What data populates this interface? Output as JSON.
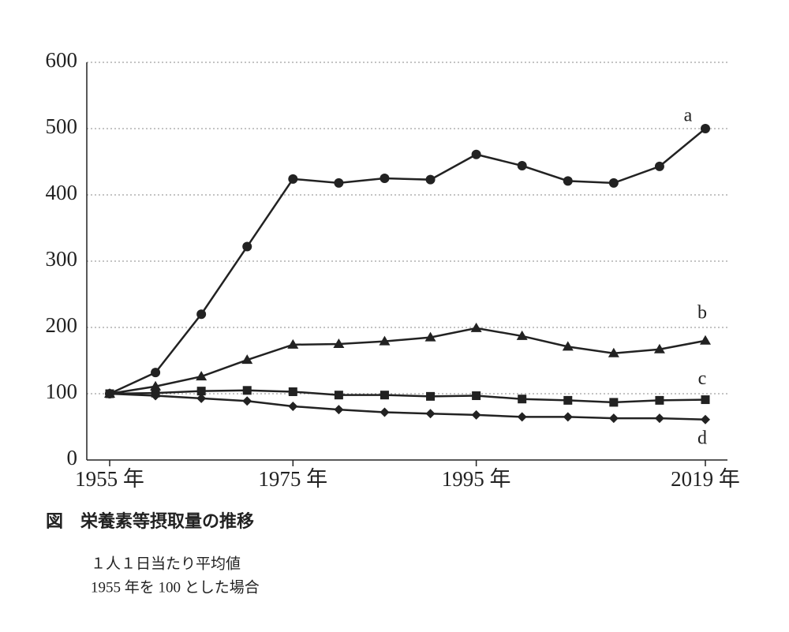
{
  "chart_data": {
    "type": "line",
    "title": "図　栄養素等摂取量の推移",
    "notes": [
      "１人１日当たり平均値",
      "1955 年を 100 とした場合"
    ],
    "categories": [
      "1955 年",
      null,
      null,
      null,
      "1975 年",
      null,
      null,
      null,
      "1995 年",
      null,
      null,
      null,
      null,
      "2019 年"
    ],
    "series": [
      {
        "name": "a",
        "marker": "circle",
        "color": "#222",
        "values": [
          100,
          132,
          220,
          322,
          424,
          418,
          425,
          423,
          461,
          444,
          421,
          418,
          443,
          500
        ]
      },
      {
        "name": "b",
        "marker": "triangle",
        "color": "#222",
        "values": [
          100,
          111,
          126,
          151,
          174,
          175,
          179,
          185,
          199,
          187,
          171,
          161,
          167,
          180
        ]
      },
      {
        "name": "c",
        "marker": "square",
        "color": "#222",
        "values": [
          100,
          101,
          104,
          105,
          103,
          98,
          98,
          96,
          97,
          92,
          90,
          87,
          90,
          91
        ]
      },
      {
        "name": "d",
        "marker": "diamond",
        "color": "#222",
        "values": [
          100,
          97,
          93,
          89,
          81,
          76,
          72,
          70,
          68,
          65,
          65,
          63,
          63,
          61
        ]
      }
    ],
    "ylim": [
      0,
      600
    ],
    "yticks": [
      0,
      100,
      200,
      300,
      400,
      500,
      600
    ],
    "grid": true
  }
}
